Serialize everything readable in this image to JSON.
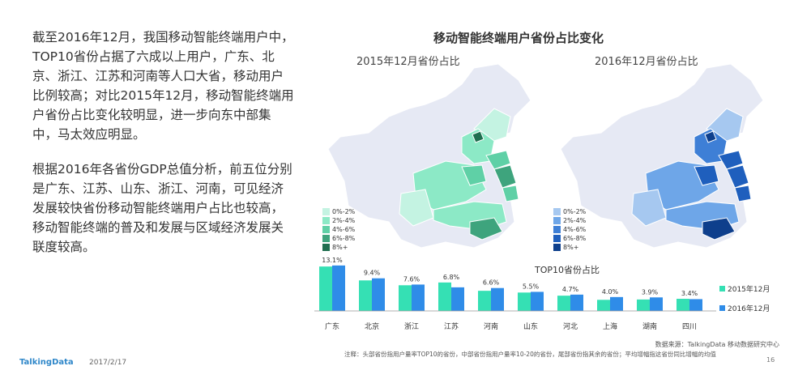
{
  "paragraphs": [
    "截至2016年12月，我国移动智能终端用户中，TOP10省份占据了六成以上用户，广东、北京、浙江、江苏和河南等人口大省，移动用户比例较高；对比2015年12月，移动智能终端用户省份占比变化较明显，进一步向东中部集中，马太效应明显。",
    "根据2016年各省份GDP总值分析，前五位分别是广东、江苏、山东、浙江、河南，可见经济发展较快省份移动智能终端用户占比也较高，移动智能终端的普及和发展与区域经济发展关联度较高。"
  ],
  "chart_title": "移动智能终端用户省份占比变化",
  "maps": [
    {
      "title": "2015年12月省份占比",
      "legend": [
        "0%-2%",
        "2%-4%",
        "4%-6%",
        "6%-8%",
        "8%+"
      ],
      "colors": [
        "#c4f3e2",
        "#8ce9c6",
        "#5fd0a6",
        "#3ea47d",
        "#1f6e4f"
      ]
    },
    {
      "title": "2016年12月省份占比",
      "legend": [
        "0%-2%",
        "2%-4%",
        "4%-6%",
        "6%-8%",
        "8%+"
      ],
      "colors": [
        "#a6c8f0",
        "#6ea6e8",
        "#3e7fd6",
        "#1f5fbd",
        "#0e3f8c"
      ]
    }
  ],
  "chart_data": {
    "type": "bar",
    "title": "TOP10省份占比",
    "categories": [
      "广东",
      "北京",
      "浙江",
      "江苏",
      "河南",
      "山东",
      "河北",
      "上海",
      "湖南",
      "四川"
    ],
    "series": [
      {
        "name": "2015年12月",
        "color": "#35e0b4",
        "values": [
          12.8,
          8.8,
          7.4,
          8.2,
          5.8,
          5.3,
          4.4,
          3.2,
          3.3,
          3.5
        ]
      },
      {
        "name": "2016年12月",
        "color": "#2f8ce8",
        "values": [
          13.1,
          9.4,
          7.6,
          6.8,
          6.6,
          5.5,
          4.7,
          4.0,
          3.9,
          3.4
        ]
      }
    ],
    "data_labels": [
      "13.1%",
      "9.4%",
      "7.6%",
      "6.8%",
      "6.6%",
      "5.5%",
      "4.7%",
      "4.0%",
      "3.9%",
      "3.4%"
    ],
    "ylim": [
      0,
      14
    ]
  },
  "footer": {
    "logo": "TalkingData",
    "date": "2017/2/17",
    "source": "数据来源：TalkingData 移动数据研究中心",
    "note": "注释：头部省份指用户量率TOP10的省份，中部省份指用户量率10-20的省份，尾部省份指其余的省份；平均增幅指这省份同比增幅的均值",
    "page": "16"
  }
}
